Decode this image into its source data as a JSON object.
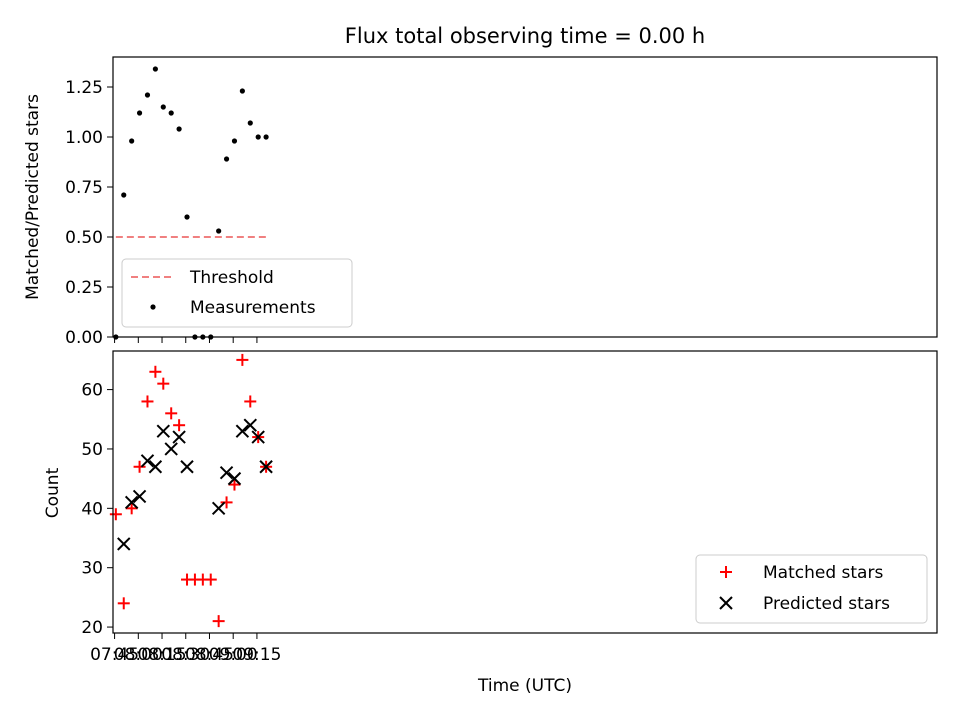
{
  "chart_data": [
    {
      "type": "scatter",
      "title": "Flux total observing time = 0.00 h",
      "xlabel": "",
      "ylabel": "Matched/Predicted stars",
      "ylim": [
        0,
        1.4
      ],
      "yticks": [
        0.0,
        0.25,
        0.5,
        0.75,
        1.0,
        1.25
      ],
      "ytick_labels": [
        "0.00",
        "0.25",
        "0.50",
        "0.75",
        "1.00",
        "1.25"
      ],
      "xlim_minutes": [
        464,
        985
      ],
      "xticks_minutes": [
        465,
        480,
        495,
        510,
        525,
        540,
        555
      ],
      "x_minutes": [
        465.8,
        470.8,
        475.8,
        480.8,
        485.8,
        490.8,
        495.8,
        500.8,
        505.8,
        510.8,
        515.8,
        520.8,
        525.8,
        530.8,
        535.8,
        540.8,
        545.8,
        550.8,
        555.8,
        560.8
      ],
      "threshold": {
        "name": "Threshold",
        "value": 0.5,
        "x_range_minutes": [
          465.8,
          560.8
        ],
        "color": "#f08080"
      },
      "series": [
        {
          "name": "Measurements",
          "color": "#000000",
          "values": [
            0.0,
            0.71,
            0.98,
            1.12,
            1.21,
            1.34,
            1.15,
            1.12,
            1.04,
            0.6,
            0.0,
            0.0,
            0.0,
            0.53,
            0.89,
            0.98,
            1.23,
            1.07,
            1.0,
            1.0
          ]
        }
      ],
      "legend": [
        "Threshold",
        "Measurements"
      ],
      "legend_position": "lower-left",
      "grid": false
    },
    {
      "type": "scatter",
      "title": "",
      "xlabel": "Time (UTC)",
      "ylabel": "Count",
      "ylim": [
        19,
        66.5
      ],
      "yticks": [
        20,
        30,
        40,
        50,
        60
      ],
      "ytick_labels": [
        "20",
        "30",
        "40",
        "50",
        "60"
      ],
      "xticks_minutes": [
        465,
        480,
        495,
        510,
        525,
        540,
        555
      ],
      "xtick_labels": [
        "07:45",
        "08:00",
        "08:15",
        "08:30",
        "08:45",
        "09:00",
        "09:15"
      ],
      "x_minutes": [
        465.8,
        470.8,
        475.8,
        480.8,
        485.8,
        490.8,
        495.8,
        500.8,
        505.8,
        510.8,
        515.8,
        520.8,
        525.8,
        530.8,
        535.8,
        540.8,
        545.8,
        550.8,
        555.8,
        560.8
      ],
      "series": [
        {
          "name": "Matched stars",
          "marker": "+",
          "color": "#ff0000",
          "values": [
            39,
            24,
            40,
            47,
            58,
            63,
            61,
            56,
            54,
            28,
            28,
            28,
            28,
            21,
            41,
            44,
            65,
            58,
            52,
            47
          ]
        },
        {
          "name": "Predicted stars",
          "marker": "x",
          "color": "#000000",
          "values": [
            null,
            34,
            41,
            42,
            48,
            47,
            53,
            50,
            52,
            47,
            null,
            null,
            null,
            40,
            46,
            45,
            53,
            54,
            52,
            47
          ]
        }
      ],
      "legend": [
        "Matched stars",
        "Predicted stars"
      ],
      "legend_position": "lower-right",
      "grid": false
    }
  ]
}
